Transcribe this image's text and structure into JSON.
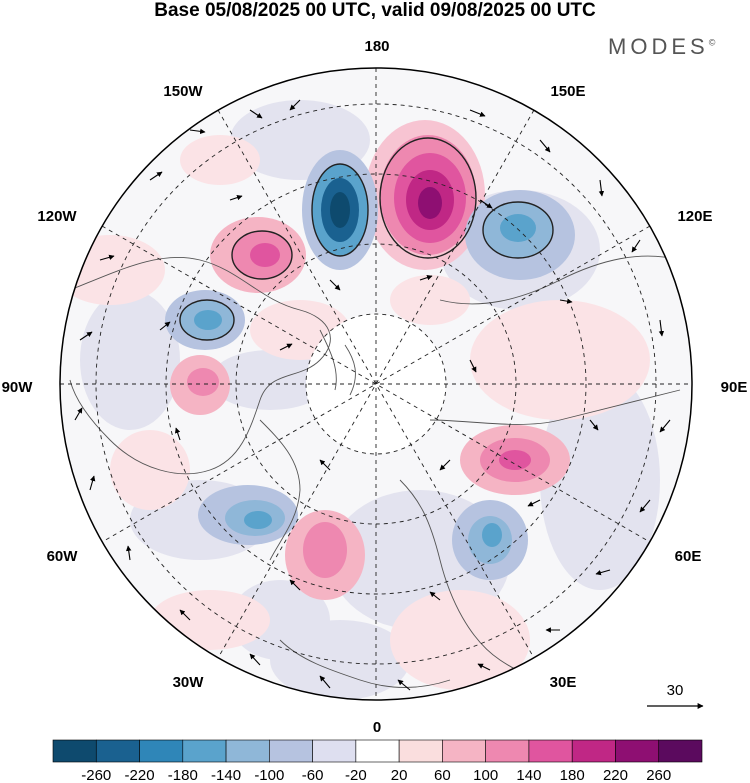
{
  "title": "Base 05/08/2025 00 UTC, valid 09/08/2025 00 UTC",
  "brand": "MODES",
  "brand_mark": "©",
  "longitude_labels": {
    "lon_180": "180",
    "lon_150e": "150E",
    "lon_120e": "120E",
    "lon_90e": "90E",
    "lon_60e": "60E",
    "lon_30e": "30E",
    "lon_0": "0",
    "lon_30w": "30W",
    "lon_60w": "60W",
    "lon_90w": "90W",
    "lon_120w": "120W",
    "lon_150w": "150W"
  },
  "vector_reference": {
    "label": "30"
  },
  "colorbar": {
    "ticks": [
      "-260",
      "-220",
      "-180",
      "-140",
      "-100",
      "-60",
      "-20",
      "20",
      "60",
      "100",
      "140",
      "180",
      "220",
      "260"
    ],
    "colors": [
      "#0e4a6e",
      "#1a6190",
      "#2f86b8",
      "#5aa3cc",
      "#8fb7d8",
      "#b6c3e0",
      "#dedff0",
      "#ffffff",
      "#fadede",
      "#f5b4c4",
      "#ee88b0",
      "#e0559f",
      "#c02785",
      "#8e0f72",
      "#5b0a5e"
    ]
  },
  "anomaly_features": [
    {
      "sign": "positive",
      "level": "strong",
      "area": "north of 180-150E"
    },
    {
      "sign": "negative",
      "level": "strong",
      "area": "170W"
    },
    {
      "sign": "negative",
      "level": "moderate",
      "area": "140E"
    },
    {
      "sign": "positive",
      "level": "moderate",
      "area": "130W"
    },
    {
      "sign": "negative",
      "level": "moderate",
      "area": "110W"
    },
    {
      "sign": "positive",
      "level": "moderate",
      "area": "90W"
    },
    {
      "sign": "negative",
      "level": "moderate",
      "area": "50W"
    },
    {
      "sign": "positive",
      "level": "moderate",
      "area": "30W"
    },
    {
      "sign": "positive",
      "level": "moderate",
      "area": "70E"
    },
    {
      "sign": "negative",
      "level": "moderate",
      "area": "50E"
    },
    {
      "sign": "positive",
      "level": "weak",
      "area": "100E"
    },
    {
      "sign": "positive",
      "level": "weak",
      "area": "20E"
    }
  ]
}
